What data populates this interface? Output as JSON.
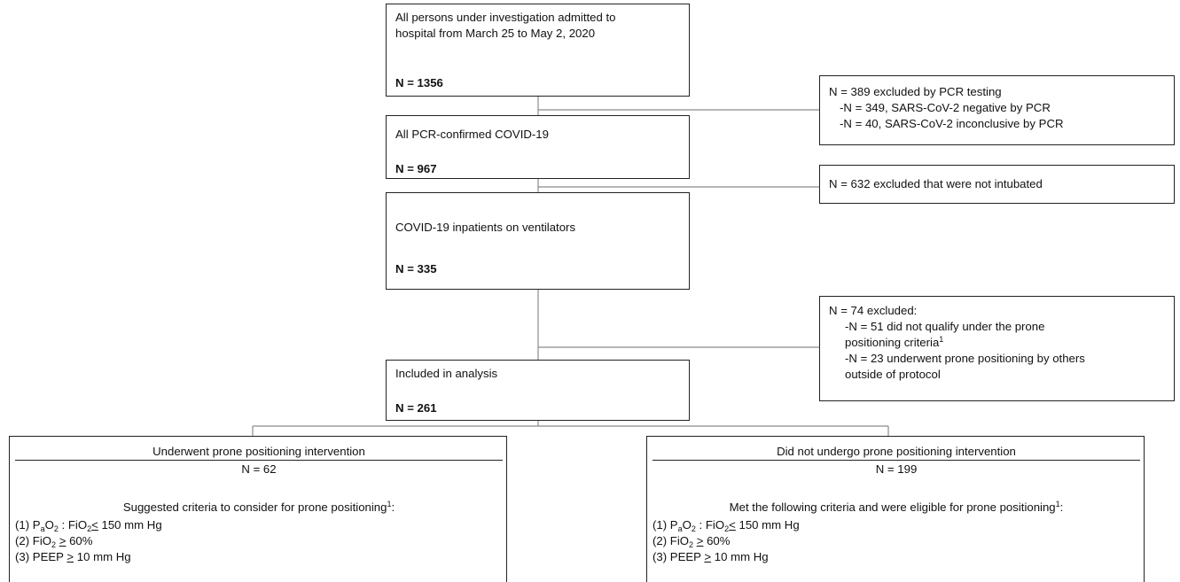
{
  "boxes": {
    "all_persons": {
      "text_line1": "All persons under investigation admitted to",
      "text_line2": "hospital from March 25 to May 2, 2020",
      "n": "N = 1356"
    },
    "pcr_confirmed": {
      "text": "All PCR-confirmed COVID-19",
      "n": "N = 967"
    },
    "ventilators": {
      "text": "COVID-19 inpatients on ventilators",
      "n": "N = 335"
    },
    "included": {
      "text": "Included in analysis",
      "n": "N = 261"
    }
  },
  "exclusions": {
    "pcr": {
      "line1": "N = 389 excluded by PCR testing",
      "line2": "-N = 349, SARS-CoV-2 negative by PCR",
      "line3": "-N = 40, SARS-CoV-2 inconclusive by PCR"
    },
    "not_intubated": {
      "line1": "N = 632 excluded that were not intubated"
    },
    "other": {
      "line1": "N = 74 excluded:",
      "line2": "-N = 51 did not qualify under the prone",
      "line3": "positioning criteria",
      "line3_sup": "1",
      "line4": "-N = 23 underwent prone positioning by others",
      "line5": "outside of protocol"
    }
  },
  "cohorts": {
    "prone": {
      "title": "Underwent prone positioning intervention",
      "n": "N = 62",
      "subtitle": "Suggested criteria to consider for prone positioning",
      "subtitle_sup": "1",
      "subtitle_end": ":"
    },
    "no_prone": {
      "title": "Did not undergo prone positioning intervention",
      "n": "N = 199",
      "subtitle": "Met the following criteria and were eligible for prone positioning",
      "subtitle_sup": "1",
      "subtitle_end": ":"
    }
  },
  "criteria": {
    "c1_prefix": "(1) P",
    "c1_sub_a": "a",
    "c1_o": "O",
    "c1_sub_2a": "2",
    "c1_mid": " : FiO",
    "c1_sub_2b": "2",
    "c1_op": "<",
    "c1_val": " 150 mm Hg",
    "c2_prefix": "(2) FiO",
    "c2_sub": "2",
    "c2_op": ">",
    "c2_val": " 60%",
    "c3_prefix": "(3) PEEP ",
    "c3_op": ">",
    "c3_val": " 10 mm Hg"
  }
}
